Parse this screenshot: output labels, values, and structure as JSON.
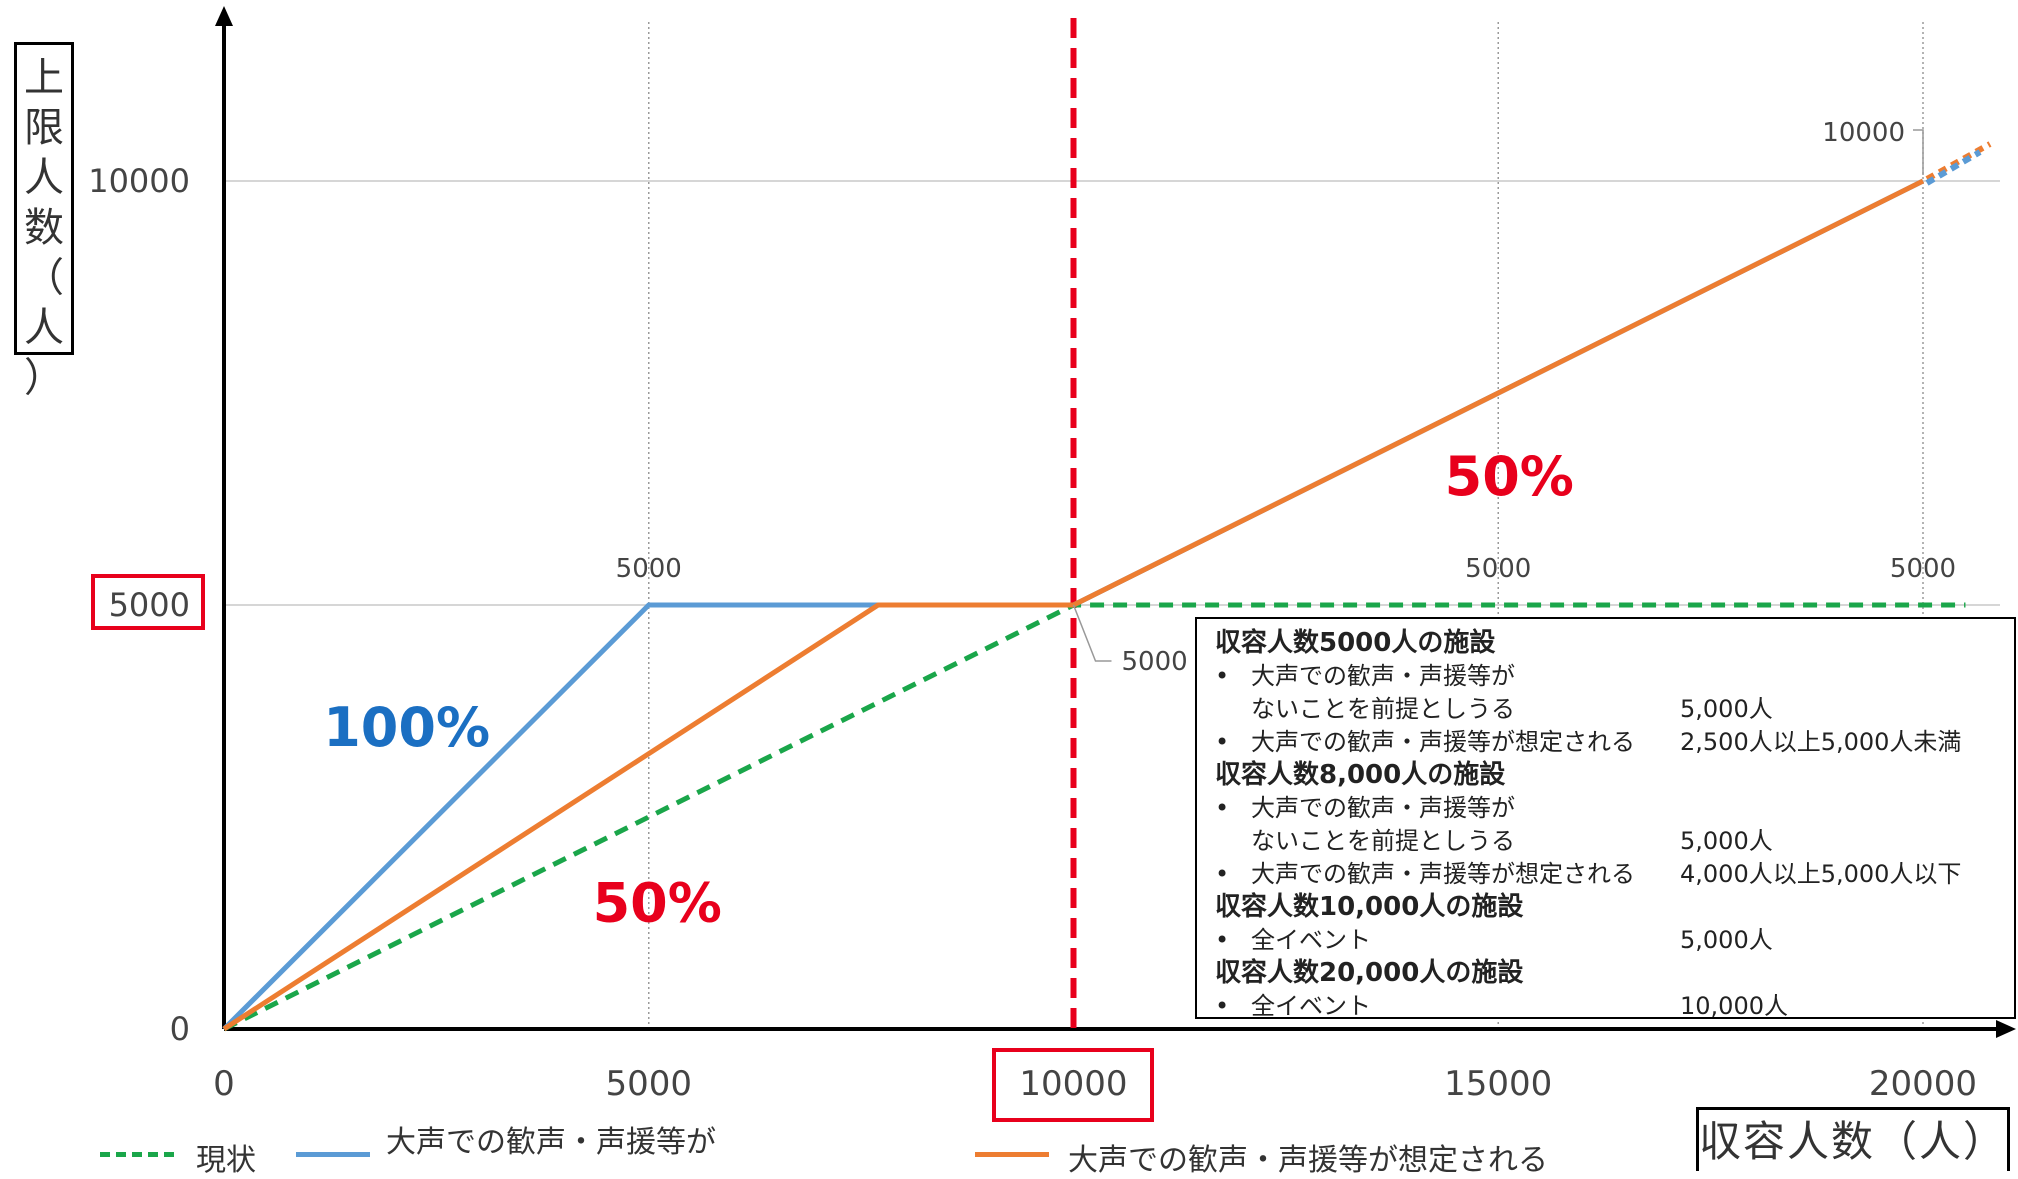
{
  "chart_data": {
    "type": "line",
    "title": "",
    "xlabel": "収容人数（人）",
    "ylabel": "上限人数（人）",
    "xlim": [
      0,
      21000
    ],
    "ylim": [
      0,
      12000
    ],
    "x_ticks": [
      "0",
      "5000",
      "10000",
      "15000",
      "20000"
    ],
    "y_ticks": [
      "0",
      "5000",
      "10000"
    ],
    "highlighted_ticks": {
      "x": "10000",
      "y": "5000"
    },
    "grid": {
      "horizontal": true,
      "vertical_dotted": true
    },
    "threshold_line": {
      "x": 10000,
      "color": "#e8001c",
      "style": "dashed"
    },
    "series": [
      {
        "name": "現状",
        "color": "#1aa64a",
        "style": "dashed",
        "points": [
          [
            0,
            0
          ],
          [
            10000,
            5000
          ],
          [
            20500,
            5000
          ]
        ]
      },
      {
        "name": "大声での歓声・声援等がないことを前提としうる",
        "color": "#5b9bd5",
        "style": "solid",
        "points": [
          [
            0,
            0
          ],
          [
            5000,
            5000
          ],
          [
            10000,
            5000
          ],
          [
            20000,
            10000
          ]
        ]
      },
      {
        "name": "大声での歓声・声援等が想定される",
        "color": "#ed7d31",
        "style": "solid",
        "points": [
          [
            0,
            0
          ],
          [
            7700,
            5000
          ],
          [
            10000,
            5000
          ],
          [
            20000,
            10000
          ]
        ]
      }
    ],
    "data_labels": [
      {
        "text": "5000",
        "x": 5000,
        "y": 5000
      },
      {
        "text": "5000",
        "x": 15000,
        "y": 5000
      },
      {
        "text": "5000",
        "x": 20000,
        "y": 5000
      },
      {
        "text": "5000",
        "x": 10000,
        "y": 5000
      },
      {
        "text": "10000",
        "x": 20000,
        "y": 10000
      }
    ],
    "annotations": [
      {
        "text": "100%",
        "color": "#1b6fc2",
        "x": 2150,
        "y": 3550
      },
      {
        "text": "50%",
        "color": "#e8001c",
        "x": 5100,
        "y": 1480
      },
      {
        "text": "50%",
        "color": "#e8001c",
        "x": 15130,
        "y": 6510
      }
    ],
    "legend": {
      "position": "bottom",
      "items": [
        {
          "label": "現状",
          "color": "#1aa64a",
          "style": "dashed"
        },
        {
          "label": "大声での歓声・声援等が",
          "color": "#5b9bd5",
          "style": "solid"
        },
        {
          "label": "大声での歓声・声援等が想定される",
          "color": "#ed7d31",
          "style": "solid"
        }
      ]
    }
  },
  "info_box": {
    "rows": [
      {
        "kind": "heading",
        "text": "収容人数5000人の施設"
      },
      {
        "kind": "bullet",
        "text": "大声での歓声・声援等が",
        "value": ""
      },
      {
        "kind": "cont",
        "text": "ないことを前提としうる",
        "value": "5,000人"
      },
      {
        "kind": "bullet",
        "text": "大声での歓声・声援等が想定される",
        "value": "2,500人以上5,000人未満"
      },
      {
        "kind": "heading",
        "text": "収容人数8,000人の施設"
      },
      {
        "kind": "bullet",
        "text": "大声での歓声・声援等が",
        "value": ""
      },
      {
        "kind": "cont",
        "text": "ないことを前提としうる",
        "value": "5,000人"
      },
      {
        "kind": "bullet",
        "text": "大声での歓声・声援等が想定される",
        "value": "4,000人以上5,000人以下"
      },
      {
        "kind": "heading",
        "text": "収容人数10,000人の施設"
      },
      {
        "kind": "bullet",
        "text": "全イベント",
        "value": "5,000人"
      },
      {
        "kind": "heading",
        "text": "収容人数20,000人の施設"
      },
      {
        "kind": "bullet",
        "text": "全イベント",
        "value": "10,000人"
      }
    ],
    "bullet_char": "•"
  }
}
